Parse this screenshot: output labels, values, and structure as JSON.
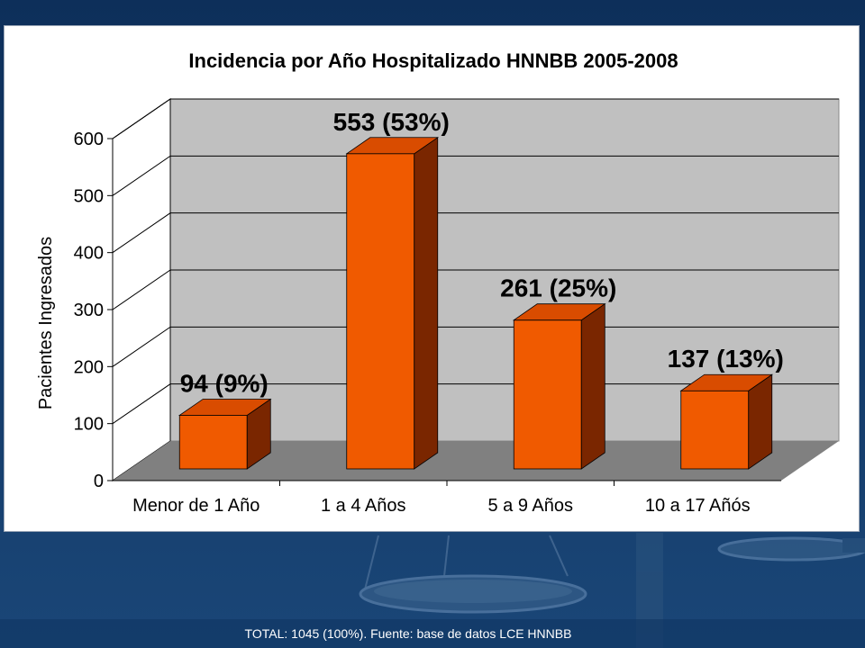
{
  "theme": {
    "slide_bg": "#0d2f5a",
    "bar_front": "#f05a00",
    "bar_side": "#7a2600",
    "bar_top": "#d94c00",
    "wall": "#c0c0c0",
    "floor": "#808080"
  },
  "chart_data": {
    "type": "bar",
    "title": "Incidencia por Año Hospitalizado HNNBB 2005-2008",
    "xlabel": "",
    "ylabel": "Pacientes Ingresados",
    "categories": [
      "Menor de 1 Año",
      "1 a 4 Años",
      "5 a 9 Años",
      "10 a 17 Añós"
    ],
    "values": [
      94,
      553,
      261,
      137
    ],
    "data_labels": [
      "94 (9%)",
      "553 (53%)",
      "261 (25%)",
      "137 (13%)"
    ],
    "ylim": [
      0,
      600
    ],
    "yticks": [
      0,
      100,
      200,
      300,
      400,
      500,
      600
    ],
    "grid": true,
    "legend": "none"
  },
  "footer": {
    "text": "TOTAL: 1045 (100%). Fuente: base de datos LCE HNNBB"
  }
}
